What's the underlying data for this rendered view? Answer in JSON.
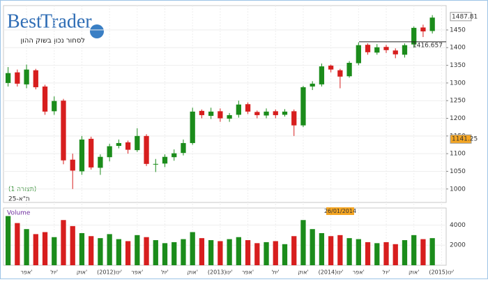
{
  "header": {
    "brand_1": "Best",
    "brand_2": "Trader",
    "tagline": "לסחור נכון בשוק ההון"
  },
  "chart_data": {
    "type": "candlestick",
    "symbol": "ת\"א-25",
    "setup": "(תצורה 1)",
    "categories": [
      null,
      null,
      "אפר'",
      null,
      null,
      "יול'",
      null,
      null,
      "אוק'",
      null,
      null,
      "(2012)ינו'",
      null,
      null,
      "אפר'",
      null,
      null,
      "יול'",
      null,
      null,
      "אוק'",
      null,
      null,
      "(2013)ינו'",
      null,
      null,
      "אפר'",
      null,
      null,
      "יול'",
      null,
      null,
      "אוק'",
      null,
      null,
      "(2014)ינו'",
      null,
      null,
      "אפר'",
      null,
      null,
      "יול'",
      null,
      null,
      "אוק'",
      null,
      null,
      "(2015)ינו'"
    ],
    "open": [
      1300,
      1330,
      1296,
      1336,
      1290,
      1220,
      1250,
      1083,
      1050,
      1142,
      1060,
      1090,
      1122,
      1132,
      1110,
      1150,
      1069,
      1072,
      1090,
      1102,
      1130,
      1221,
      1207,
      1220,
      1199,
      1210,
      1240,
      1218,
      1208,
      1220,
      1210,
      1220,
      1180,
      1290,
      1296,
      1349,
      1336,
      1319,
      1356,
      1408,
      1386,
      1402,
      1392,
      1380,
      1409,
      1457,
      1447,
      null
    ],
    "high": [
      1345,
      1338,
      1352,
      1340,
      1295,
      1262,
      1255,
      1100,
      1150,
      1148,
      1098,
      1128,
      1140,
      1137,
      1172,
      1155,
      1085,
      1098,
      1112,
      1140,
      1230,
      1225,
      1230,
      1228,
      1215,
      1250,
      1245,
      1222,
      1228,
      1225,
      1226,
      1225,
      1292,
      1305,
      1355,
      1352,
      1340,
      1362,
      1415,
      1412,
      1410,
      1408,
      1398,
      1412,
      1460,
      1465,
      1492,
      null
    ],
    "low": [
      1290,
      1290,
      1285,
      1282,
      1210,
      1210,
      1070,
      1000,
      1040,
      1055,
      1040,
      1078,
      1115,
      1100,
      1105,
      1065,
      1048,
      1062,
      1080,
      1095,
      1125,
      1200,
      1198,
      1190,
      1190,
      1202,
      1212,
      1200,
      1200,
      1200,
      1205,
      1150,
      1175,
      1280,
      1290,
      1330,
      1285,
      1315,
      1350,
      1380,
      1380,
      1385,
      1370,
      1372,
      1400,
      1430,
      1440,
      null
    ],
    "close": [
      1328,
      1298,
      1338,
      1288,
      1219,
      1249,
      1081,
      1052,
      1140,
      1061,
      1091,
      1121,
      1130,
      1111,
      1150,
      1071,
      1071,
      1091,
      1101,
      1130,
      1219,
      1209,
      1219,
      1200,
      1209,
      1239,
      1219,
      1209,
      1219,
      1209,
      1219,
      1180,
      1288,
      1298,
      1347,
      1338,
      1318,
      1357,
      1407,
      1387,
      1401,
      1393,
      1381,
      1407,
      1456,
      1446,
      1485,
      null
    ],
    "up_color": "#1b8c1b",
    "down_color": "#d71e1e",
    "ylim": [
      962,
      1519
    ],
    "yticks": [
      1000,
      1050,
      1100,
      1150,
      1200,
      1250,
      1300,
      1350,
      1400,
      1450
    ],
    "grid": true,
    "last_price": 1487.81,
    "cursor_price": 1141.25,
    "level": 1416.657,
    "cursor_date": "26/01/2014",
    "volume": {
      "name": "Volume",
      "values": [
        4900,
        4200,
        3600,
        3100,
        3300,
        2800,
        4500,
        3900,
        3200,
        2900,
        2700,
        3100,
        2600,
        2400,
        3000,
        2800,
        2500,
        2200,
        2300,
        2600,
        3300,
        2700,
        2500,
        2400,
        2600,
        2800,
        2500,
        2200,
        2300,
        2400,
        2100,
        2900,
        4500,
        3600,
        3200,
        2900,
        3000,
        2700,
        2600,
        2300,
        2200,
        2300,
        2100,
        2500,
        3000,
        2600,
        2700,
        null
      ],
      "ylim": [
        0,
        5700
      ],
      "yticks": [
        2000,
        4000
      ]
    }
  }
}
